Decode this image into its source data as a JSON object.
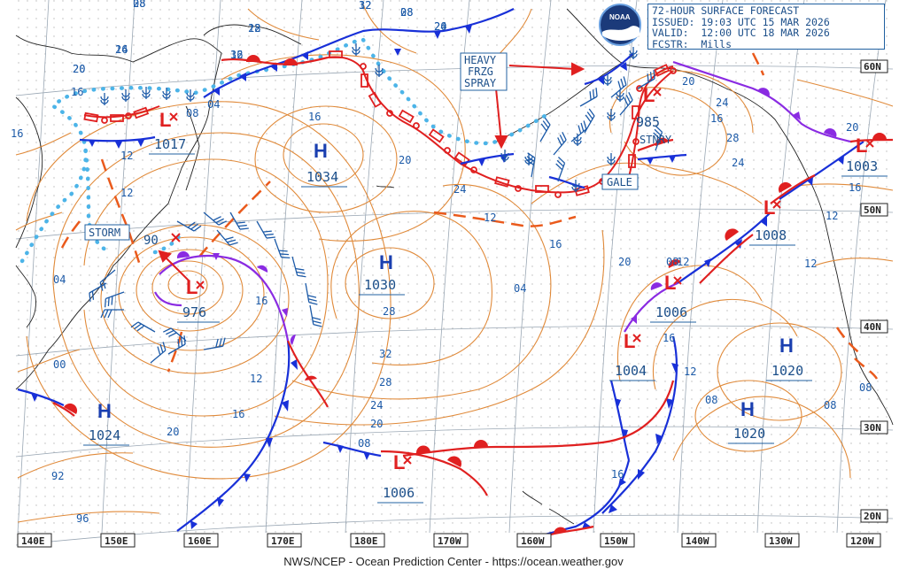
{
  "header": {
    "title": "72-HOUR SURFACE FORECAST",
    "issued": "ISSUED: 19:03 UTC 15 MAR 2026",
    "valid": "VALID:  12:00 UTC 18 MAR 2026",
    "forecaster": "FCSTR:  Mills"
  },
  "logo": {
    "text": "NOAA"
  },
  "footer": {
    "credit": "NWS/NCEP - Ocean Prediction Center - https://ocean.weather.gov"
  },
  "longitude_labels": [
    "140E",
    "150E",
    "160E",
    "170E",
    "180E",
    "170W",
    "160W",
    "150W",
    "140W",
    "130W",
    "120W"
  ],
  "latitude_labels": [
    "60N",
    "50N",
    "40N",
    "30N",
    "20N"
  ],
  "pressure_centers": [
    {
      "type": "H",
      "value": "1034"
    },
    {
      "type": "H",
      "value": "1030"
    },
    {
      "type": "H",
      "value": "1024"
    },
    {
      "type": "H",
      "value": "1020"
    },
    {
      "type": "H",
      "value": "1020"
    },
    {
      "type": "L",
      "value": "1017"
    },
    {
      "type": "L",
      "value": "976"
    },
    {
      "type": "L",
      "value": "1006"
    },
    {
      "type": "L",
      "value": "985"
    },
    {
      "type": "L",
      "value": "1003"
    },
    {
      "type": "L",
      "value": "1008"
    },
    {
      "type": "L",
      "value": "1006"
    },
    {
      "type": "L",
      "value": "1004"
    }
  ],
  "warnings": {
    "storm": "STORM",
    "gale": "GALE",
    "stnry": "STNRY",
    "heavy_frzg_spray": [
      "HEAVY",
      "FRZG",
      "SPRAY"
    ]
  },
  "past_position": "90",
  "isobar_labels": [
    "28",
    "28",
    "32",
    "32",
    "28",
    "24",
    "24",
    "20",
    "16",
    "16",
    "12",
    "12",
    "16",
    "20",
    "24",
    "28",
    "32",
    "28",
    "24",
    "20",
    "16",
    "12",
    "16",
    "20",
    "04",
    "08",
    "12",
    "16",
    "20",
    "20",
    "24",
    "28",
    "24",
    "20",
    "16",
    "12",
    "08",
    "16",
    "12",
    "08",
    "08",
    "08",
    "12",
    "16",
    "12",
    "16",
    "92",
    "96",
    "00",
    "04",
    "08",
    "04",
    "08",
    "12",
    "16",
    "12",
    "08",
    "20",
    "16",
    "20"
  ]
}
